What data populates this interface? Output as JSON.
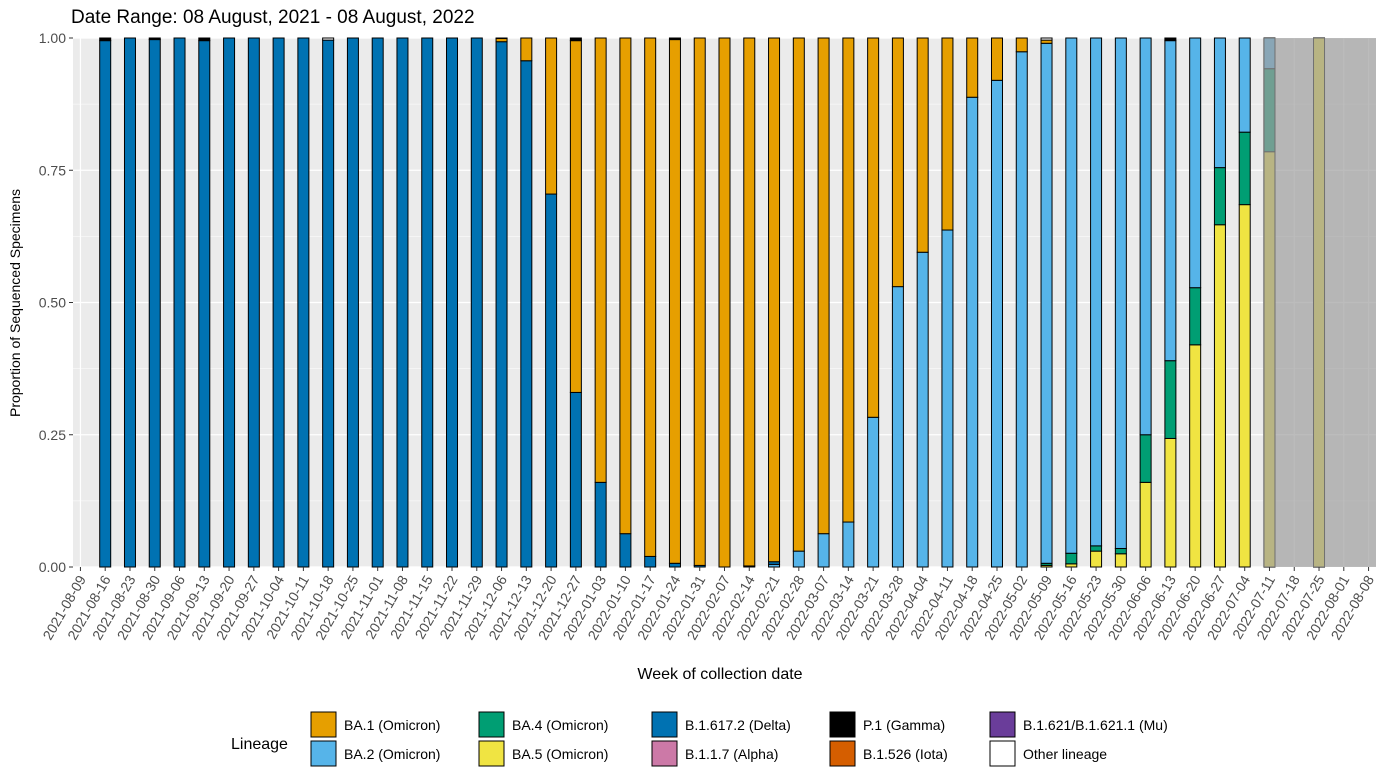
{
  "chart_data": {
    "type": "bar",
    "stacked": true,
    "title": "Date Range: 08 August, 2021 - 08 August, 2022",
    "xlabel": "Week of collection date",
    "ylabel": "Proportion of Sequenced Specimens",
    "ylim": [
      0,
      1
    ],
    "yticks": [
      "0.00",
      "0.25",
      "0.50",
      "0.75",
      "1.00"
    ],
    "grid": true,
    "categories": [
      "2021-08-09",
      "2021-08-16",
      "2021-08-23",
      "2021-08-30",
      "2021-09-06",
      "2021-09-13",
      "2021-09-20",
      "2021-09-27",
      "2021-10-04",
      "2021-10-11",
      "2021-10-18",
      "2021-10-25",
      "2021-11-01",
      "2021-11-08",
      "2021-11-15",
      "2021-11-22",
      "2021-11-29",
      "2021-12-06",
      "2021-12-13",
      "2021-12-20",
      "2021-12-27",
      "2022-01-03",
      "2022-01-10",
      "2022-01-17",
      "2022-01-24",
      "2022-01-31",
      "2022-02-07",
      "2022-02-14",
      "2022-02-21",
      "2022-02-28",
      "2022-03-07",
      "2022-03-14",
      "2022-03-21",
      "2022-03-28",
      "2022-04-04",
      "2022-04-11",
      "2022-04-18",
      "2022-04-25",
      "2022-05-02",
      "2022-05-09",
      "2022-05-16",
      "2022-05-23",
      "2022-05-30",
      "2022-06-06",
      "2022-06-13",
      "2022-06-20",
      "2022-06-27",
      "2022-07-04",
      "2022-07-11",
      "2022-07-18",
      "2022-07-25",
      "2022-08-01",
      "2022-08-08"
    ],
    "shaded_region": {
      "from": "2022-07-11",
      "to": "2022-08-08",
      "color": "#a0a0a0"
    },
    "series": [
      {
        "name": "BA.5 (Omicron)",
        "color": "#F0E442",
        "values": [
          0,
          0,
          0,
          0,
          0,
          0,
          0,
          0,
          0,
          0,
          0,
          0,
          0,
          0,
          0,
          0,
          0,
          0,
          0,
          0,
          0,
          0,
          0,
          0,
          0,
          0,
          0,
          0,
          0,
          0,
          0,
          0,
          0,
          0,
          0,
          0,
          0,
          0,
          0,
          0.003,
          0.006,
          0.03,
          0.025,
          0.16,
          0.243,
          0.42,
          0.647,
          0.685,
          0.785,
          0,
          1.0,
          0,
          0
        ]
      },
      {
        "name": "BA.4 (Omicron)",
        "color": "#009E73",
        "values": [
          0,
          0,
          0,
          0,
          0,
          0,
          0,
          0,
          0,
          0,
          0,
          0,
          0,
          0,
          0,
          0,
          0,
          0,
          0,
          0,
          0,
          0,
          0,
          0,
          0,
          0,
          0,
          0,
          0,
          0,
          0,
          0,
          0,
          0,
          0,
          0,
          0,
          0,
          0,
          0.004,
          0.02,
          0.01,
          0.01,
          0.09,
          0.147,
          0.108,
          0.108,
          0.137,
          0.157,
          0,
          0,
          0,
          0
        ]
      },
      {
        "name": "BA.2 (Omicron)",
        "color": "#56B4E9",
        "values": [
          0,
          0,
          0,
          0,
          0,
          0,
          0,
          0,
          0,
          0,
          0,
          0,
          0,
          0,
          0,
          0,
          0,
          0,
          0,
          0,
          0,
          0,
          0,
          0,
          0,
          0,
          0,
          0,
          0.005,
          0.03,
          0.063,
          0.085,
          0.283,
          0.53,
          0.595,
          0.637,
          0.888,
          0.92,
          0.974,
          0.983,
          0.974,
          0.96,
          0.965,
          0.75,
          0.605,
          0.472,
          0.245,
          0.178,
          0.058,
          0,
          0,
          0,
          0
        ]
      },
      {
        "name": "B.1.617.2 (Delta)",
        "color": "#0072B2",
        "values": [
          0,
          0.995,
          1.0,
          0.997,
          1.0,
          0.995,
          1.0,
          1.0,
          1.0,
          1.0,
          0.996,
          1.0,
          1.0,
          1.0,
          1.0,
          1.0,
          1.0,
          0.993,
          0.957,
          0.705,
          0.33,
          0.16,
          0.063,
          0.02,
          0.007,
          0.003,
          0,
          0.002,
          0.005,
          0,
          0,
          0,
          0,
          0,
          0,
          0,
          0,
          0,
          0,
          0,
          0,
          0,
          0,
          0,
          0,
          0,
          0,
          0,
          0,
          0,
          0,
          0,
          0
        ]
      },
      {
        "name": "BA.1 (Omicron)",
        "color": "#E69F00",
        "values": [
          0,
          0,
          0,
          0,
          0,
          0,
          0,
          0,
          0,
          0,
          0,
          0,
          0,
          0,
          0,
          0,
          0,
          0.006,
          0.043,
          0.295,
          0.665,
          0.84,
          0.937,
          0.98,
          0.99,
          0.997,
          1.0,
          0.998,
          0.99,
          0.97,
          0.937,
          0.915,
          0.717,
          0.47,
          0.405,
          0.363,
          0.112,
          0.08,
          0.026,
          0.006,
          0,
          0,
          0,
          0,
          0,
          0,
          0,
          0,
          0,
          0,
          0,
          0,
          0
        ]
      },
      {
        "name": "P.1 (Gamma)",
        "color": "#000000",
        "values": [
          0,
          0.005,
          0,
          0.003,
          0,
          0.005,
          0,
          0,
          0,
          0,
          0,
          0,
          0,
          0,
          0,
          0,
          0,
          0.001,
          0,
          0,
          0.005,
          0,
          0,
          0,
          0.003,
          0,
          0,
          0,
          0,
          0,
          0,
          0,
          0,
          0,
          0,
          0,
          0,
          0,
          0,
          0,
          0,
          0,
          0,
          0,
          0.005,
          0,
          0,
          0,
          0,
          0,
          0,
          0,
          0
        ]
      },
      {
        "name": "B.1.1.7 (Alpha)",
        "color": "#CC79A7",
        "values": [
          0,
          0,
          0,
          0,
          0,
          0,
          0,
          0,
          0,
          0,
          0,
          0,
          0,
          0,
          0,
          0,
          0,
          0,
          0,
          0,
          0,
          0,
          0,
          0,
          0,
          0,
          0,
          0,
          0,
          0,
          0,
          0,
          0,
          0,
          0,
          0,
          0,
          0,
          0,
          0,
          0,
          0,
          0,
          0,
          0,
          0,
          0,
          0,
          0,
          0,
          0,
          0,
          0
        ]
      },
      {
        "name": "B.1.526 (Iota)",
        "color": "#D55E00",
        "values": [
          0,
          0,
          0,
          0,
          0,
          0,
          0,
          0,
          0,
          0,
          0,
          0,
          0,
          0,
          0,
          0,
          0,
          0,
          0,
          0,
          0,
          0,
          0,
          0,
          0,
          0,
          0,
          0,
          0,
          0,
          0,
          0,
          0,
          0,
          0,
          0,
          0,
          0,
          0,
          0,
          0,
          0,
          0,
          0,
          0,
          0,
          0,
          0,
          0,
          0,
          0,
          0,
          0
        ]
      },
      {
        "name": "B.1.621/B.1.621.1 (Mu)",
        "color": "#6A3D9A",
        "values": [
          0,
          0,
          0,
          0,
          0,
          0,
          0,
          0,
          0,
          0,
          0,
          0,
          0,
          0,
          0,
          0,
          0,
          0,
          0,
          0,
          0,
          0,
          0,
          0,
          0,
          0,
          0,
          0,
          0,
          0,
          0,
          0,
          0,
          0,
          0,
          0,
          0,
          0,
          0,
          0,
          0,
          0,
          0,
          0,
          0,
          0,
          0,
          0,
          0,
          0,
          0,
          0,
          0
        ]
      },
      {
        "name": "Other lineage",
        "color": "#ffffff",
        "values": [
          0,
          0,
          0,
          0,
          0,
          0,
          0,
          0,
          0,
          0,
          0.004,
          0,
          0,
          0,
          0,
          0,
          0,
          0,
          0,
          0,
          0,
          0,
          0,
          0,
          0,
          0,
          0,
          0,
          0,
          0,
          0,
          0,
          0,
          0,
          0,
          0,
          0,
          0,
          0,
          0.004,
          0,
          0,
          0,
          0,
          0,
          0,
          0,
          0,
          0,
          0,
          0,
          0,
          0
        ]
      }
    ],
    "legend": {
      "title": "Lineage",
      "position": "bottom",
      "items": [
        {
          "label": "BA.1 (Omicron)",
          "color": "#E69F00"
        },
        {
          "label": "BA.2 (Omicron)",
          "color": "#56B4E9"
        },
        {
          "label": "BA.4 (Omicron)",
          "color": "#009E73"
        },
        {
          "label": "BA.5 (Omicron)",
          "color": "#F0E442"
        },
        {
          "label": "B.1.617.2 (Delta)",
          "color": "#0072B2"
        },
        {
          "label": "B.1.1.7 (Alpha)",
          "color": "#CC79A7"
        },
        {
          "label": "P.1 (Gamma)",
          "color": "#000000"
        },
        {
          "label": "B.1.526 (Iota)",
          "color": "#D55E00"
        },
        {
          "label": "B.1.621/B.1.621.1 (Mu)",
          "color": "#6A3D9A"
        },
        {
          "label": "Other lineage",
          "color": "#ffffff"
        }
      ]
    }
  }
}
